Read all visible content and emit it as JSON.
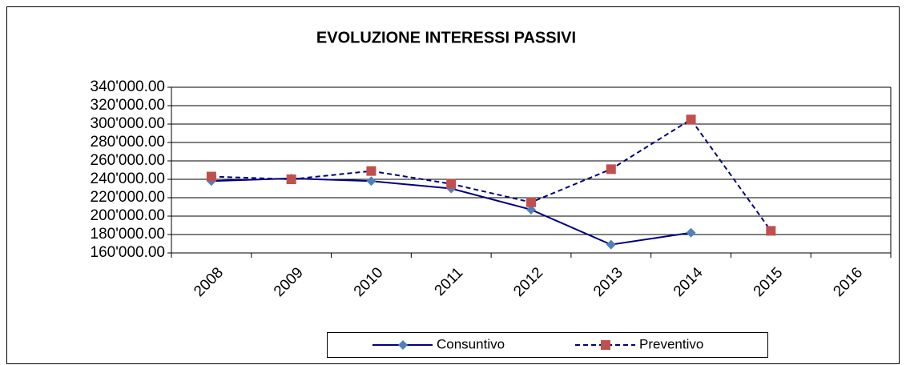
{
  "chart_data": {
    "type": "line",
    "title": "EVOLUZIONE INTERESSI PASSIVI",
    "categories": [
      "2008",
      "2009",
      "2010",
      "2011",
      "2012",
      "2013",
      "2014",
      "2015",
      "2016"
    ],
    "series": [
      {
        "name": "Consuntivo",
        "color": "#000080",
        "marker": "diamond",
        "marker_color": "#4f81bd",
        "linestyle": "solid",
        "values": [
          238000,
          241000,
          238000,
          230000,
          207000,
          169000,
          182000,
          null,
          null
        ]
      },
      {
        "name": "Preventivo",
        "color": "#000080",
        "marker": "square",
        "marker_color": "#c0504d",
        "linestyle": "dashed",
        "values": [
          243000,
          240000,
          249000,
          235000,
          215000,
          251000,
          305000,
          184000,
          null
        ]
      }
    ],
    "ylim": [
      160000,
      340000
    ],
    "yticks": [
      {
        "value": 160000,
        "label": "160'000.00"
      },
      {
        "value": 180000,
        "label": "180'000.00"
      },
      {
        "value": 200000,
        "label": "200'000.00"
      },
      {
        "value": 220000,
        "label": "220'000.00"
      },
      {
        "value": 240000,
        "label": "240'000.00"
      },
      {
        "value": 260000,
        "label": "260'000.00"
      },
      {
        "value": 280000,
        "label": "280'000.00"
      },
      {
        "value": 300000,
        "label": "300'000.00"
      },
      {
        "value": 320000,
        "label": "320'000.00"
      },
      {
        "value": 340000,
        "label": "340'000.00"
      }
    ],
    "grid": true,
    "legend": "bottom"
  }
}
